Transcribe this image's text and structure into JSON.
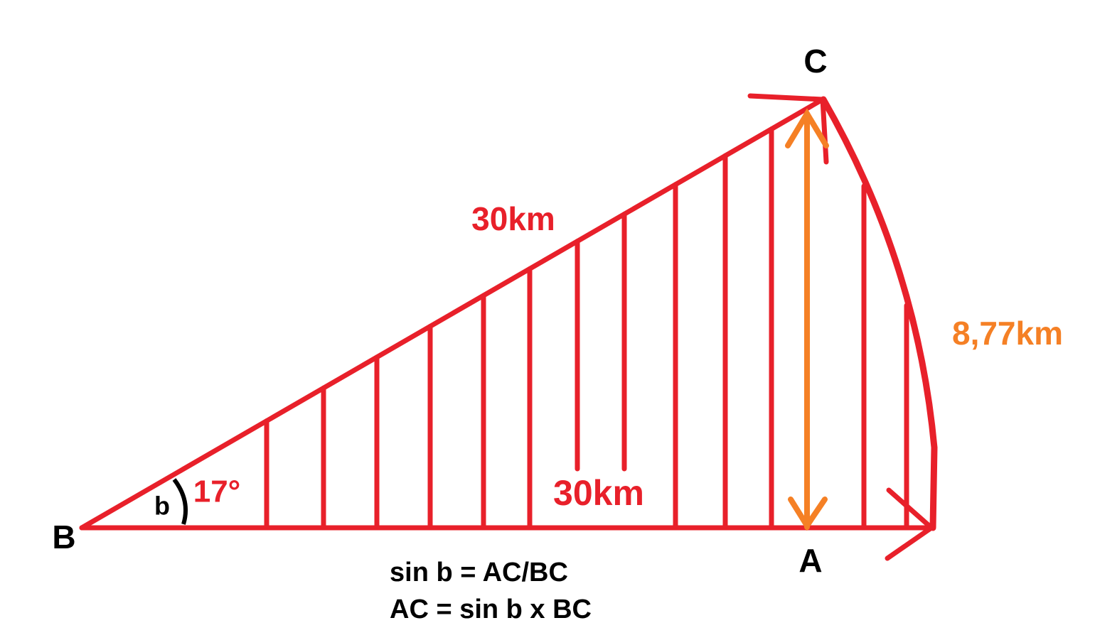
{
  "points": {
    "b_vertex": "B",
    "c_vertex": "C",
    "a_vertex": "A"
  },
  "angle": {
    "name": "b",
    "value": "17°"
  },
  "sides": {
    "hypotenuse": "30km",
    "base": "30km",
    "opposite": "8,77km"
  },
  "formulas": [
    "sin b = AC/BC",
    "AC = sin b x BC"
  ]
}
